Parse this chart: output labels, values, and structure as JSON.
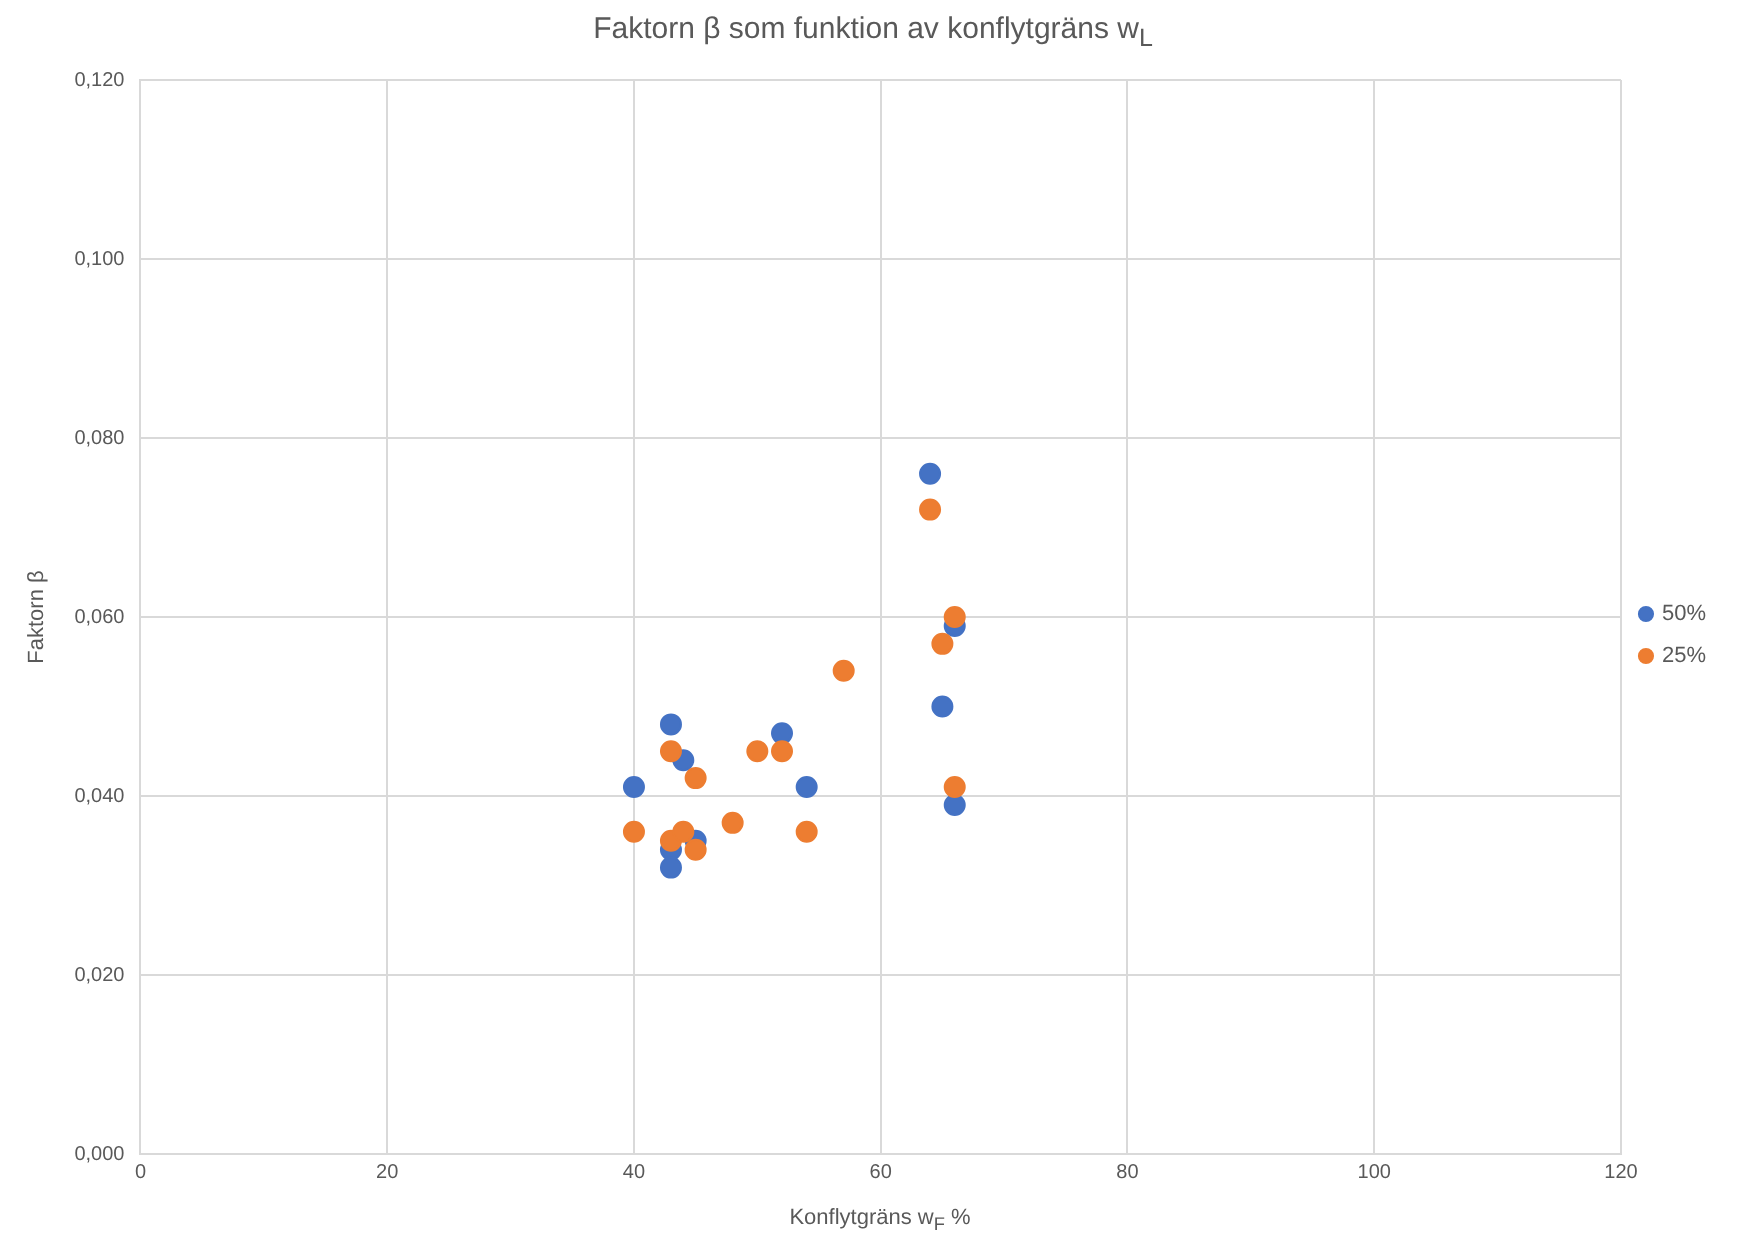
{
  "chart_data": {
    "type": "scatter",
    "title": "Faktorn β som funktion av konflytgräns  w$_{L}$",
    "xlabel": "Konflytgräns  w$_{F}$ %",
    "ylabel": "Faktorn β",
    "series": [
      {
        "name": "50%",
        "color": "#4472c4",
        "x": [
          40,
          43,
          43,
          43,
          44,
          45,
          52,
          54,
          64,
          66,
          65,
          66
        ],
        "values": [
          0.041,
          0.048,
          0.034,
          0.032,
          0.044,
          0.035,
          0.047,
          0.041,
          0.076,
          0.059,
          0.05,
          0.039
        ]
      },
      {
        "name": "25%",
        "color": "#ed7d31",
        "x": [
          40,
          43,
          43,
          44,
          45,
          45,
          48,
          50,
          52,
          54,
          57,
          64,
          65,
          66,
          66
        ],
        "values": [
          0.036,
          0.045,
          0.035,
          0.036,
          0.042,
          0.034,
          0.037,
          0.045,
          0.045,
          0.036,
          0.054,
          0.072,
          0.057,
          0.06,
          0.041
        ]
      }
    ],
    "xlim": [
      0,
      120
    ],
    "xticks": [
      0,
      20,
      40,
      60,
      80,
      100,
      120
    ],
    "ylim": [
      0,
      0.12
    ],
    "yticks": [
      {
        "value": 0,
        "label": "0,000"
      },
      {
        "value": 0.02,
        "label": "0,020"
      },
      {
        "value": 0.04,
        "label": "0,040"
      },
      {
        "value": 0.06,
        "label": "0,060"
      },
      {
        "value": 0.08,
        "label": "0,080"
      },
      {
        "value": 0.1,
        "label": "0,100"
      },
      {
        "value": 0.12,
        "label": "0,120"
      }
    ],
    "grid": true,
    "legend": "right",
    "marker": "circle"
  }
}
